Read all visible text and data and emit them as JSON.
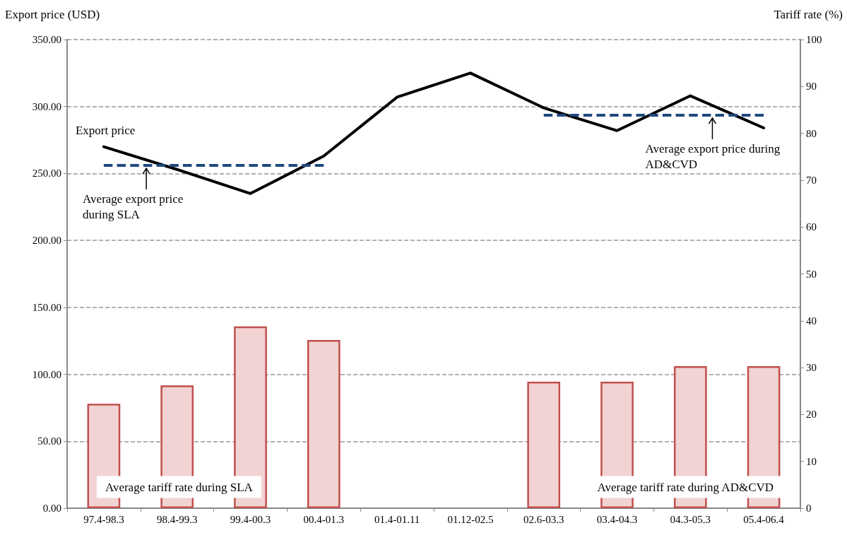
{
  "chart_data": {
    "type": "line",
    "ylabel": "Export price (USD)",
    "y2label": "Tariff rate (%)",
    "categories": [
      "97.4-98.3",
      "98.4-99.3",
      "99.4-00.3",
      "00.4-01.3",
      "01.4-01.11",
      "01.12-02.5",
      "02.6-03.3",
      "03.4-04.3",
      "04.3-05.3",
      "05.4-06.4"
    ],
    "series": [
      {
        "type": "bar",
        "axis": "y2",
        "color": "#f2d3d3",
        "values": [
          22.3,
          26.2,
          38.8,
          35.9,
          null,
          null,
          27.0,
          27.0,
          30.3,
          30.3
        ]
      },
      {
        "name": "Export price",
        "color": "#000000",
        "line_style": "solid",
        "values": [
          270,
          253,
          235,
          263,
          307,
          325,
          299,
          282,
          308,
          284
        ]
      },
      {
        "color": "#1f497d",
        "line_style": "dashed",
        "values": [
          256,
          256,
          256,
          256,
          null,
          null,
          null,
          null,
          null,
          null
        ]
      },
      {
        "color": "#1f497d",
        "line_style": "dashed",
        "values": [
          null,
          null,
          null,
          null,
          null,
          null,
          293.5,
          293.5,
          293.5,
          293.5
        ]
      }
    ],
    "ylim": [
      0,
      350
    ],
    "yticks": [
      {
        "value": 0,
        "label": "0.00"
      },
      {
        "value": 50,
        "label": "50.00"
      },
      {
        "value": 100,
        "label": "100.00"
      },
      {
        "value": 150,
        "label": "150.00"
      },
      {
        "value": 200,
        "label": "200.00"
      },
      {
        "value": 250,
        "label": "250.00"
      },
      {
        "value": 300,
        "label": "300.00"
      },
      {
        "value": 350,
        "label": "350.00"
      }
    ],
    "y2lim": [
      0,
      100
    ],
    "y2ticks": [
      0,
      10,
      20,
      30,
      40,
      50,
      60,
      70,
      80,
      90,
      100
    ],
    "grid": "y",
    "legend": false,
    "marker": "none",
    "annotations": [
      {
        "text": "Average export price during SLA",
        "x": "97.4-98.3",
        "y": 256
      },
      {
        "text": "Average export price during AD&CVD",
        "x": "04.3-05.3",
        "y": 293.5
      },
      "Average tariff rate during SLA",
      "Average tariff rate during AD&CVD"
    ]
  }
}
